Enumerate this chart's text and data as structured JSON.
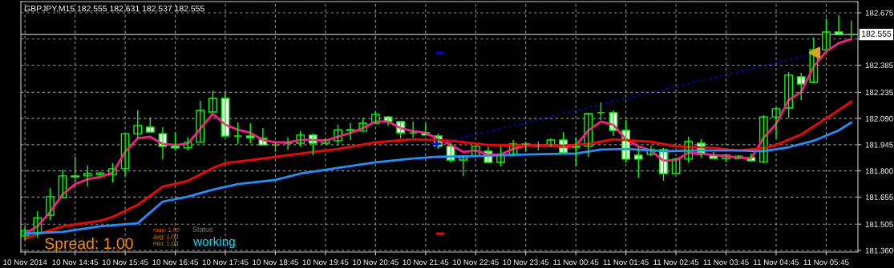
{
  "chart_data": {
    "type": "candlestick",
    "title": "GBPJPY,M15 182.555 182.631 182.537 182.555",
    "x": [
      "2014-11-10T13:45",
      "2014-11-10T14:00",
      "2014-11-10T14:15",
      "2014-11-10T14:30",
      "2014-11-10T14:45",
      "2014-11-10T15:00",
      "2014-11-10T15:15",
      "2014-11-10T15:30",
      "2014-11-10T15:45",
      "2014-11-10T16:00",
      "2014-11-10T16:15",
      "2014-11-10T16:30",
      "2014-11-10T16:45",
      "2014-11-10T17:00",
      "2014-11-10T17:15",
      "2014-11-10T17:30",
      "2014-11-10T17:45",
      "2014-11-10T18:00",
      "2014-11-10T18:15",
      "2014-11-10T18:30",
      "2014-11-10T18:45",
      "2014-11-10T19:00",
      "2014-11-10T19:15",
      "2014-11-10T19:30",
      "2014-11-10T19:45",
      "2014-11-10T20:00",
      "2014-11-10T20:15",
      "2014-11-10T20:30",
      "2014-11-10T20:45",
      "2014-11-10T21:00",
      "2014-11-10T21:15",
      "2014-11-10T21:30",
      "2014-11-10T21:45",
      "2014-11-10T22:00",
      "2014-11-10T22:15",
      "2014-11-10T22:30",
      "2014-11-10T22:45",
      "2014-11-10T23:00",
      "2014-11-10T23:15",
      "2014-11-10T23:30",
      "2014-11-10T23:45",
      "2014-11-11T00:00",
      "2014-11-11T00:15",
      "2014-11-11T00:30",
      "2014-11-11T00:45",
      "2014-11-11T01:00",
      "2014-11-11T01:15",
      "2014-11-11T01:30",
      "2014-11-11T01:45",
      "2014-11-11T02:00",
      "2014-11-11T02:15",
      "2014-11-11T02:30",
      "2014-11-11T02:45",
      "2014-11-11T03:00",
      "2014-11-11T03:15",
      "2014-11-11T03:30",
      "2014-11-11T03:45",
      "2014-11-11T04:00",
      "2014-11-11T04:15",
      "2014-11-11T04:30",
      "2014-11-11T04:45",
      "2014-11-11T05:00",
      "2014-11-11T05:15",
      "2014-11-11T05:30",
      "2014-11-11T05:45",
      "2014-11-11T06:00",
      "2014-11-11T06:15"
    ],
    "ohlc": [
      [
        181.44,
        181.497,
        181.417,
        181.47
      ],
      [
        181.457,
        181.577,
        181.431,
        181.541
      ],
      [
        181.555,
        181.705,
        181.528,
        181.657
      ],
      [
        181.652,
        181.807,
        181.652,
        181.772
      ],
      [
        181.767,
        181.878,
        181.736,
        181.772
      ],
      [
        181.772,
        181.829,
        181.714,
        181.785
      ],
      [
        181.78,
        181.794,
        181.776,
        181.789
      ],
      [
        181.78,
        181.843,
        181.736,
        181.812
      ],
      [
        181.812,
        182.006,
        181.772,
        182.006
      ],
      [
        182.006,
        182.135,
        181.98,
        182.051
      ],
      [
        182.042,
        182.095,
        182.015,
        182.015
      ],
      [
        182.006,
        182.042,
        181.865,
        181.936
      ],
      [
        181.936,
        182.015,
        181.913,
        181.927
      ],
      [
        181.927,
        181.984,
        181.913,
        181.958
      ],
      [
        181.958,
        182.188,
        181.958,
        182.135
      ],
      [
        182.126,
        182.245,
        182.126,
        182.201
      ],
      [
        182.201,
        182.237,
        181.993,
        181.993
      ],
      [
        181.993,
        182.068,
        181.949,
        181.993
      ],
      [
        181.993,
        182.064,
        181.953,
        181.984
      ],
      [
        181.98,
        182.037,
        181.944,
        181.944
      ],
      [
        181.944,
        181.962,
        181.905,
        181.944
      ],
      [
        181.953,
        181.984,
        181.918,
        181.958
      ],
      [
        181.953,
        182.02,
        181.936,
        181.998
      ],
      [
        181.998,
        182.006,
        181.887,
        181.953
      ],
      [
        181.953,
        181.98,
        181.949,
        181.971
      ],
      [
        181.967,
        182.055,
        181.94,
        182.028
      ],
      [
        182.024,
        182.064,
        181.971,
        182.028
      ],
      [
        182.02,
        182.095,
        182.02,
        182.064
      ],
      [
        182.064,
        182.13,
        182.064,
        182.113
      ],
      [
        182.099,
        182.104,
        182.051,
        182.073
      ],
      [
        182.073,
        182.073,
        181.98,
        182.011
      ],
      [
        182.011,
        182.073,
        181.984,
        182.011
      ],
      [
        182.011,
        182.064,
        181.998,
        181.998
      ],
      [
        181.993,
        182.006,
        181.922,
        181.936
      ],
      [
        181.936,
        181.958,
        181.847,
        181.86
      ],
      [
        181.86,
        181.882,
        181.772,
        181.874
      ],
      [
        181.882,
        181.94,
        181.878,
        181.936
      ],
      [
        181.909,
        181.936,
        181.843,
        181.847
      ],
      [
        181.847,
        181.936,
        181.825,
        181.891
      ],
      [
        181.891,
        181.971,
        181.887,
        181.949
      ],
      [
        181.949,
        181.962,
        181.905,
        181.94
      ],
      [
        181.936,
        181.962,
        181.913,
        181.936
      ],
      [
        181.936,
        181.98,
        181.931,
        181.971
      ],
      [
        181.971,
        182.015,
        181.9,
        181.9
      ],
      [
        181.931,
        181.984,
        181.825,
        181.936
      ],
      [
        181.936,
        182.122,
        181.878,
        182.117
      ],
      [
        182.122,
        182.179,
        182.082,
        182.122
      ],
      [
        182.122,
        182.135,
        181.993,
        182.024
      ],
      [
        182.024,
        182.082,
        181.847,
        181.865
      ],
      [
        181.887,
        181.936,
        181.763,
        181.865
      ],
      [
        181.891,
        181.94,
        181.882,
        181.918
      ],
      [
        181.918,
        181.927,
        181.745,
        181.785
      ],
      [
        181.785,
        181.874,
        181.785,
        181.865
      ],
      [
        181.865,
        181.989,
        181.847,
        181.962
      ],
      [
        181.953,
        181.975,
        181.874,
        181.891
      ],
      [
        181.887,
        181.905,
        181.869,
        181.869
      ],
      [
        181.869,
        181.896,
        181.847,
        181.887
      ],
      [
        181.869,
        181.887,
        181.865,
        181.882
      ],
      [
        181.874,
        181.896,
        181.856,
        181.856
      ],
      [
        181.851,
        182.108,
        181.847,
        182.099
      ],
      [
        182.099,
        182.152,
        181.98,
        182.144
      ],
      [
        182.148,
        182.347,
        182.091,
        182.33
      ],
      [
        182.321,
        182.343,
        182.192,
        182.281
      ],
      [
        182.29,
        182.538,
        182.285,
        182.471
      ],
      [
        182.471,
        182.644,
        182.471,
        182.569
      ],
      [
        182.569,
        182.662,
        182.555,
        182.555
      ],
      [
        182.555,
        182.631,
        182.537,
        182.555
      ]
    ],
    "series": [
      {
        "type": "line",
        "color": "#ff1a8c",
        "values": [
          181.453,
          181.493,
          181.572,
          181.67,
          181.727,
          181.754,
          181.767,
          181.789,
          181.905,
          181.98,
          181.989,
          181.949,
          181.944,
          181.949,
          182.033,
          182.117,
          182.055,
          182.028,
          182.011,
          181.971,
          181.958,
          181.958,
          181.971,
          181.971,
          181.967,
          181.989,
          182.011,
          182.037,
          182.073,
          182.073,
          182.037,
          182.02,
          182.011,
          181.975,
          181.944,
          181.905,
          181.913,
          181.891,
          181.891,
          181.922,
          181.94,
          181.94,
          181.944,
          181.931,
          181.94,
          182.024,
          182.073,
          182.055,
          181.975,
          181.936,
          181.913,
          181.856,
          181.86,
          181.9,
          181.896,
          181.887,
          181.882,
          181.874,
          181.869,
          181.984,
          182.06,
          182.192,
          182.237,
          182.378,
          182.462,
          182.507,
          182.529
        ]
      },
      {
        "type": "line",
        "color": "#ff0000",
        "x": [
          "2014-11-10T13:45",
          "2014-11-10T14:30",
          "2014-11-10T15:15",
          "2014-11-10T15:30",
          "2014-11-10T16:00",
          "2014-11-10T16:30",
          "2014-11-10T17:00",
          "2014-11-10T17:30",
          "2014-11-10T17:45",
          "2014-11-10T18:30",
          "2014-11-10T19:15",
          "2014-11-10T20:00",
          "2014-11-10T20:45",
          "2014-11-10T21:30",
          "2014-11-10T22:15",
          "2014-11-10T23:00",
          "2014-11-10T23:45",
          "2014-11-11T00:30",
          "2014-11-11T01:00",
          "2014-11-11T01:30",
          "2014-11-11T02:15",
          "2014-11-11T02:45",
          "2014-11-11T03:30",
          "2014-11-11T04:00",
          "2014-11-11T04:30",
          "2014-11-11T04:45",
          "2014-11-11T05:15",
          "2014-11-11T05:45",
          "2014-11-11T06:15"
        ],
        "values": [
          181.426,
          181.493,
          181.524,
          181.546,
          181.612,
          181.714,
          181.745,
          181.816,
          181.843,
          181.869,
          181.896,
          181.922,
          181.958,
          181.975,
          181.967,
          181.944,
          181.94,
          181.94,
          181.949,
          181.975,
          181.962,
          181.936,
          181.927,
          181.913,
          181.927,
          181.944,
          182.002,
          182.091,
          182.183
        ]
      },
      {
        "type": "line",
        "color": "#1e90ff",
        "x": [
          "2014-11-10T13:45",
          "2014-11-10T14:30",
          "2014-11-10T15:15",
          "2014-11-10T16:00",
          "2014-11-10T16:30",
          "2014-11-10T17:00",
          "2014-11-10T17:30",
          "2014-11-10T18:00",
          "2014-11-10T18:45",
          "2014-11-10T19:15",
          "2014-11-10T20:00",
          "2014-11-10T20:45",
          "2014-11-10T21:30",
          "2014-11-10T22:00",
          "2014-11-10T22:45",
          "2014-11-10T23:45",
          "2014-11-11T00:45",
          "2014-11-11T01:15",
          "2014-11-11T01:45",
          "2014-11-11T02:30",
          "2014-11-11T03:15",
          "2014-11-11T04:00",
          "2014-11-11T04:30",
          "2014-11-11T05:00",
          "2014-11-11T05:30",
          "2014-11-11T06:00",
          "2014-11-11T06:15"
        ],
        "values": [
          181.453,
          181.462,
          181.493,
          181.51,
          181.63,
          181.657,
          181.696,
          181.727,
          181.75,
          181.785,
          181.816,
          181.847,
          181.869,
          181.878,
          181.882,
          181.891,
          181.896,
          181.918,
          181.922,
          181.909,
          181.913,
          181.913,
          181.909,
          181.931,
          181.967,
          182.024,
          182.068
        ]
      },
      {
        "type": "line",
        "color": "#0000ff",
        "line_style": "dotted",
        "x": [
          "2014-11-10T22:00",
          "2014-11-11T05:30"
        ],
        "values": [
          181.953,
          182.449
        ]
      },
      {
        "type": "line",
        "color": "#0000ff",
        "x": [
          "2014-11-10T21:59",
          "2014-11-10T22:06"
        ],
        "values": [
          182.454,
          182.454
        ]
      },
      {
        "type": "line",
        "color": "#ff0000",
        "x": [
          "2014-11-10T21:59",
          "2014-11-10T22:06"
        ],
        "values": [
          181.453,
          181.453
        ]
      },
      {
        "type": "scatter",
        "color": "#0000ff",
        "marker": "cross",
        "x": [
          "2014-11-10T21:58"
        ],
        "values": [
          181.949
        ]
      },
      {
        "type": "scatter",
        "color": "#daa520",
        "marker": "triangle",
        "x": [
          "2014-11-11T05:31"
        ],
        "values": [
          182.454
        ]
      }
    ],
    "xlim": [
      "2014-11-10T13:40",
      "2014-11-11T06:23"
    ],
    "xticks": [
      {
        "value": "2014-11-10T13:45",
        "label": "10 Nov 2014"
      },
      {
        "value": "2014-11-10T14:45",
        "label": "10 Nov 14:45"
      },
      {
        "value": "2014-11-10T15:45",
        "label": "10 Nov 15:45"
      },
      {
        "value": "2014-11-10T16:45",
        "label": "10 Nov 16:45"
      },
      {
        "value": "2014-11-10T17:45",
        "label": "10 Nov 17:45"
      },
      {
        "value": "2014-11-10T18:45",
        "label": "10 Nov 18:45"
      },
      {
        "value": "2014-11-10T19:45",
        "label": "10 Nov 19:45"
      },
      {
        "value": "2014-11-10T20:45",
        "label": "10 Nov 20:45"
      },
      {
        "value": "2014-11-10T21:45",
        "label": "10 Nov 21:45"
      },
      {
        "value": "2014-11-10T22:45",
        "label": "10 Nov 22:45"
      },
      {
        "value": "2014-11-10T23:45",
        "label": "10 Nov 23:45"
      },
      {
        "value": "2014-11-11T00:45",
        "label": "11 Nov 00:45"
      },
      {
        "value": "2014-11-11T01:45",
        "label": "11 Nov 01:45"
      },
      {
        "value": "2014-11-11T02:45",
        "label": "11 Nov 02:45"
      },
      {
        "value": "2014-11-11T03:45",
        "label": "11 Nov 03:45"
      },
      {
        "value": "2014-11-11T04:45",
        "label": "11 Nov 04:45"
      },
      {
        "value": "2014-11-11T05:45",
        "label": "11 Nov 05:45"
      }
    ],
    "ylim": [
      181.351,
      182.737
    ],
    "yticks": [
      {
        "value": 181.36,
        "label": "181.360"
      },
      181.505,
      181.655,
      {
        "value": 181.8,
        "label": "181.800"
      },
      181.945,
      {
        "value": 182.09,
        "label": "182.090"
      },
      182.235,
      182.385,
      {
        "value": 182.53,
        "label": null
      },
      182.675
    ],
    "ref_lines": [
      {
        "axis": "y",
        "value": 182.555,
        "label": "182.555",
        "color": "#c0c0c0"
      }
    ],
    "grid": true,
    "annotations": [
      "Spread: 1.00",
      "max: 1.00",
      "avg: 1.00",
      "min: 1.00",
      "Status",
      "working"
    ]
  }
}
